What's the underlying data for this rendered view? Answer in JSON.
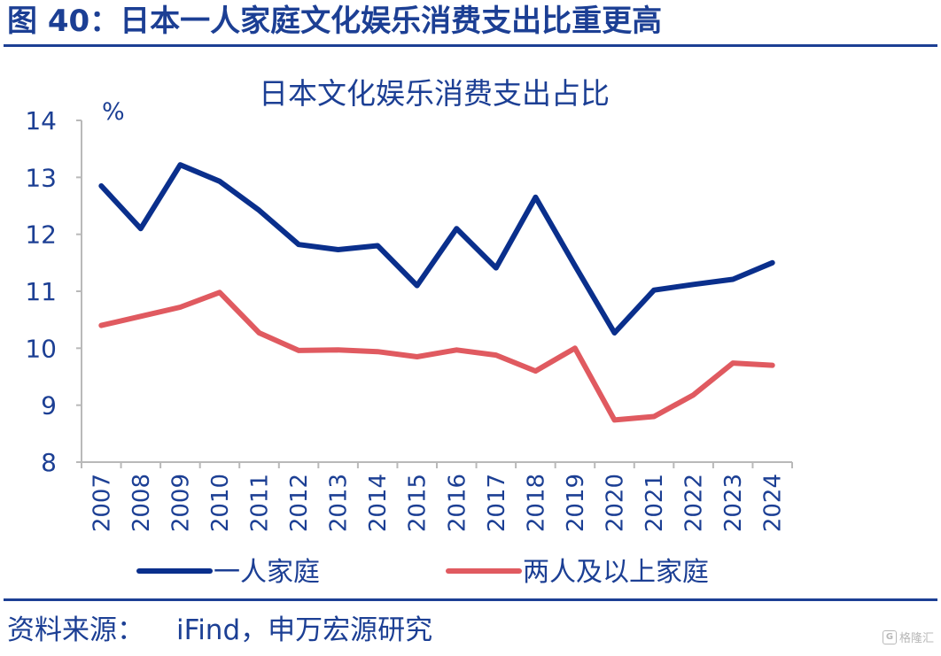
{
  "figure": {
    "title": "图 40：日本一人家庭文化娱乐消费支出比重更高"
  },
  "source": {
    "label": "资料来源：",
    "value": "iFind，申万宏源研究"
  },
  "watermark": {
    "logo": "G",
    "text": "格隆汇"
  },
  "colors": {
    "brand": "#1c3f94",
    "single": "#0a2f8c",
    "multi": "#e05a60"
  },
  "chart_data": {
    "type": "line",
    "title": "日本文化娱乐消费支出占比",
    "ylabel": "%",
    "ylim": [
      8,
      14
    ],
    "yticks": [
      14,
      13,
      12,
      11,
      10,
      9,
      8
    ],
    "categories": [
      "2007",
      "2008",
      "2009",
      "2010",
      "2011",
      "2012",
      "2013",
      "2014",
      "2015",
      "2016",
      "2017",
      "2018",
      "2019",
      "2020",
      "2021",
      "2022",
      "2023",
      "2024"
    ],
    "series": [
      {
        "name": "一人家庭",
        "color": "#0a2f8c",
        "values": [
          12.85,
          12.1,
          13.22,
          12.93,
          12.42,
          11.82,
          11.73,
          11.8,
          11.1,
          12.1,
          11.41,
          12.65,
          11.45,
          10.27,
          11.02,
          11.12,
          11.21,
          11.5
        ]
      },
      {
        "name": "两人及以上家庭",
        "color": "#e05a60",
        "values": [
          10.4,
          10.56,
          10.72,
          10.98,
          10.27,
          9.96,
          9.97,
          9.94,
          9.85,
          9.97,
          9.88,
          9.6,
          10.0,
          8.74,
          8.8,
          9.18,
          9.74,
          9.7
        ]
      }
    ],
    "legend": [
      "一人家庭",
      "两人及以上家庭"
    ],
    "legend_position": "bottom",
    "grid": false
  }
}
